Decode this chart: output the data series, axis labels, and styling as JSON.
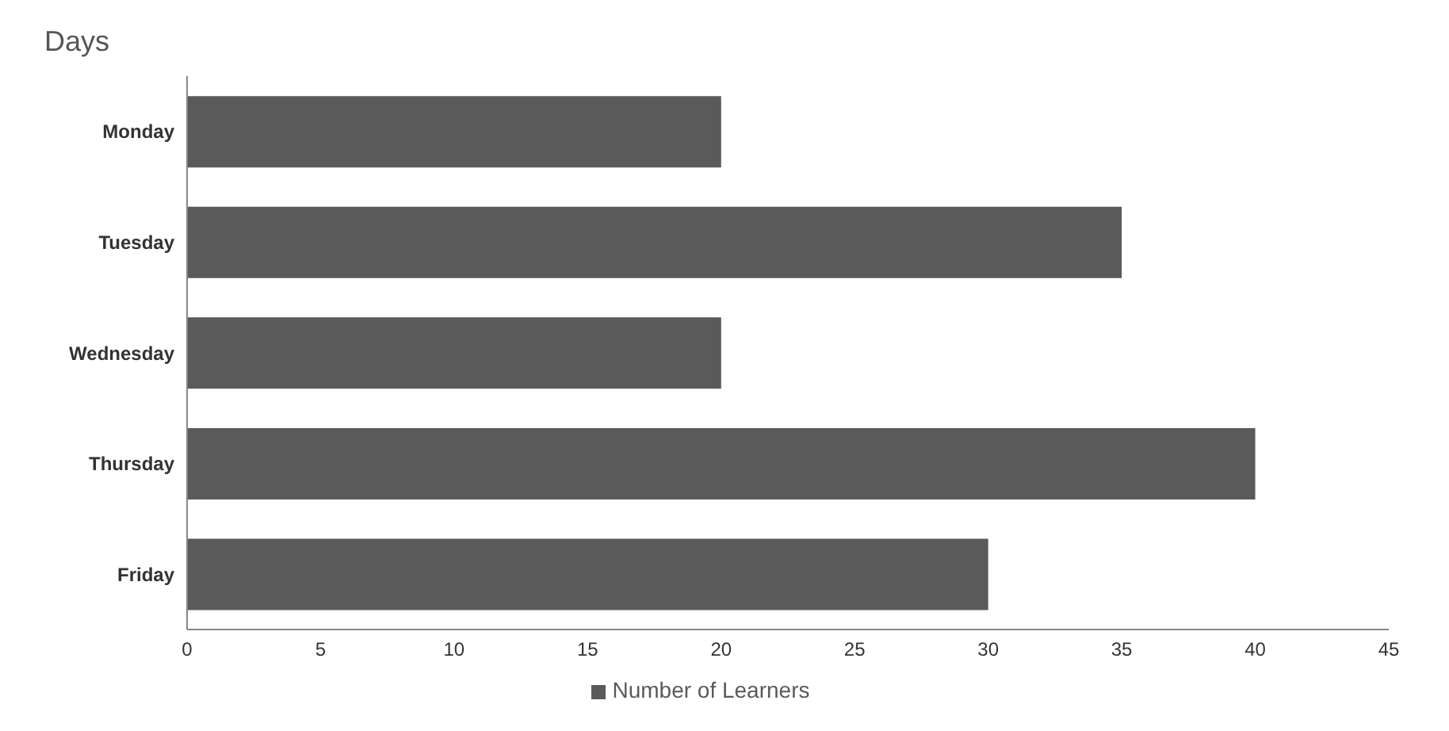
{
  "chart_data": {
    "type": "bar",
    "orientation": "horizontal",
    "ylabel": "Days",
    "categories": [
      "Monday",
      "Tuesday",
      "Wednesday",
      "Thursday",
      "Friday"
    ],
    "series": [
      {
        "name": "Number of Learners",
        "color": "#5a5a5a",
        "values": [
          20,
          35,
          20,
          40,
          30
        ]
      }
    ],
    "xlim": [
      0,
      45
    ],
    "xticks": [
      0,
      5,
      10,
      15,
      20,
      25,
      30,
      35,
      40,
      45
    ],
    "grid": false,
    "legend": "bottom"
  }
}
